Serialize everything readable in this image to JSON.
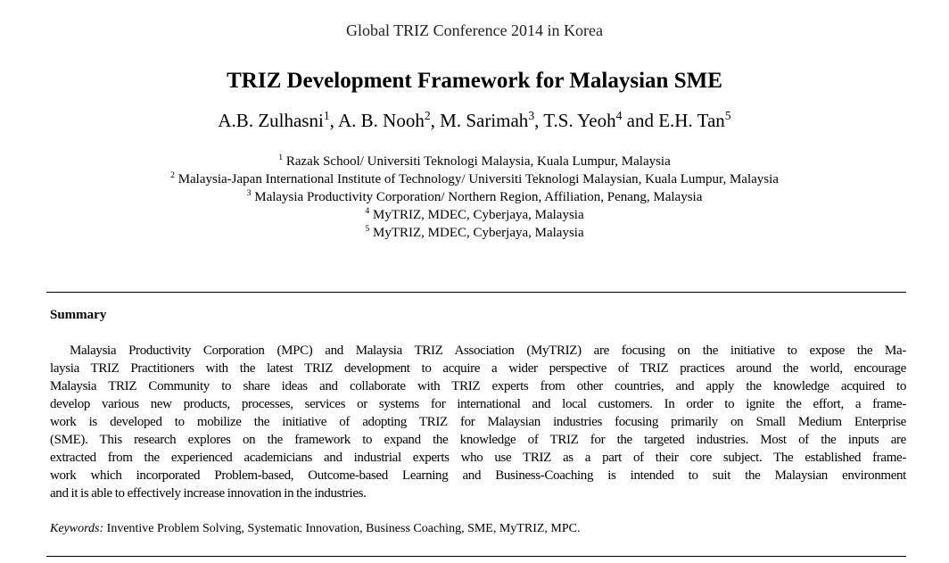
{
  "header": {
    "conference": "Global TRIZ Conference 2014 in Korea"
  },
  "title": "TRIZ Development Framework for Malaysian SME",
  "authors": [
    {
      "name": "A.B. Zulhasni",
      "sup": "1",
      "sep": ", "
    },
    {
      "name": "A. B. Nooh",
      "sup": "2",
      "sep": ", "
    },
    {
      "name": "M. Sarimah",
      "sup": "3",
      "sep": ", "
    },
    {
      "name": "T.S. Yeoh",
      "sup": "4",
      "sep": " and "
    },
    {
      "name": "E.H. Tan",
      "sup": "5",
      "sep": ""
    }
  ],
  "affiliations": [
    {
      "sup": "1",
      "text": "Razak School/ Universiti Teknologi Malaysia, Kuala Lumpur, Malaysia"
    },
    {
      "sup": "2",
      "text": "Malaysia-Japan International Institute of Technology/ Universiti Teknologi Malaysian, Kuala Lumpur, Malaysia"
    },
    {
      "sup": "3",
      "text": "Malaysia Productivity Corporation/ Northern Region, Affiliation, Penang, Malaysia"
    },
    {
      "sup": "4",
      "text": "MyTRIZ, MDEC, Cyberjaya, Malaysia"
    },
    {
      "sup": "5",
      "text": "MyTRIZ, MDEC, Cyberjaya, Malaysia"
    }
  ],
  "summary": {
    "heading": "Summary",
    "lines": [
      "Malaysia Productivity Corporation (MPC) and Malaysia TRIZ Association (MyTRIZ) are focusing on the initiative to expose the Ma-",
      "laysia TRIZ Practitioners with the latest TRIZ development to acquire a wider perspective of TRIZ practices around the world, encourage",
      "Malaysia TRIZ Community to share ideas and collaborate with TRIZ experts from other countries, and apply the knowledge acquired to",
      "develop various new products, processes, services or systems for international and local customers.  In order to ignite the effort, a frame-",
      "work is developed to mobilize the initiative of adopting TRIZ for Malaysian industries focusing primarily on Small Medium Enterprise",
      "(SME). This research explores on the framework to expand the knowledge of TRIZ for the targeted industries. Most of the inputs are",
      "extracted from the experienced academicians and industrial experts who use TRIZ as a part of their core subject. The established frame-",
      "work which incorporated Problem-based, Outcome-based Learning and Business-Coaching is intended to suit the Malaysian environment",
      "and it is able to effectively increase innovation in the industries."
    ]
  },
  "keywords": {
    "label": "Keywords:",
    "text": " Inventive Problem Solving, Systematic Innovation, Business Coaching, SME, MyTRIZ, MPC."
  }
}
